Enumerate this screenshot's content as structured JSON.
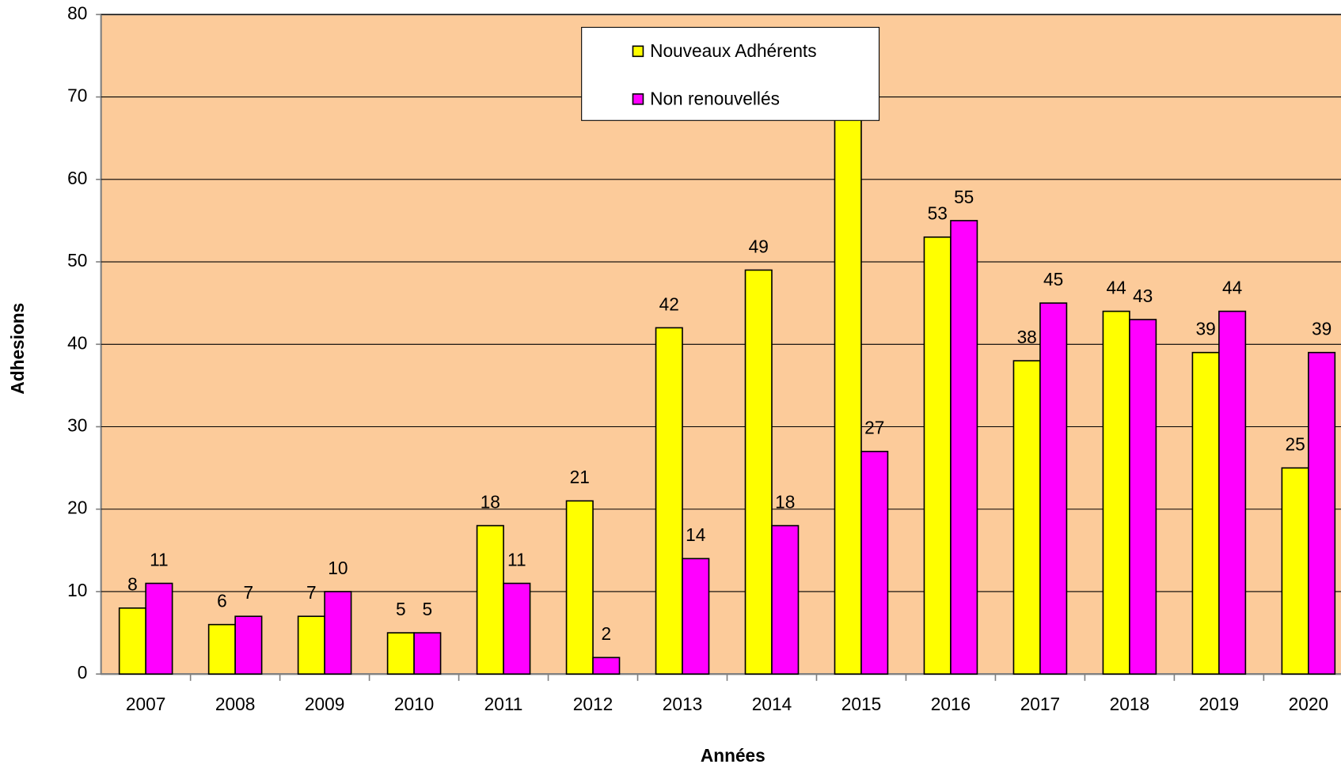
{
  "chart_data": {
    "type": "bar",
    "x_label": "Années",
    "y_label": "Adhesions",
    "categories": [
      "2007",
      "2008",
      "2009",
      "2010",
      "2011",
      "2012",
      "2013",
      "2014",
      "2015",
      "2016",
      "2017",
      "2018",
      "2019",
      "2020"
    ],
    "series": [
      {
        "name": "Nouveaux Adhérents",
        "color": "#ffff00",
        "values": [
          8,
          6,
          7,
          5,
          18,
          21,
          42,
          49,
          72,
          53,
          38,
          44,
          39,
          25
        ]
      },
      {
        "name": "Non renouvellés",
        "color": "#ff00ff",
        "values": [
          11,
          7,
          10,
          5,
          11,
          2,
          14,
          18,
          27,
          55,
          45,
          43,
          44,
          39
        ]
      }
    ],
    "ylim": [
      0,
      80
    ],
    "yticks": [
      0,
      10,
      20,
      30,
      40,
      50,
      60,
      70,
      80
    ],
    "grid": true,
    "background": "#fccb9a",
    "legend": "top"
  }
}
